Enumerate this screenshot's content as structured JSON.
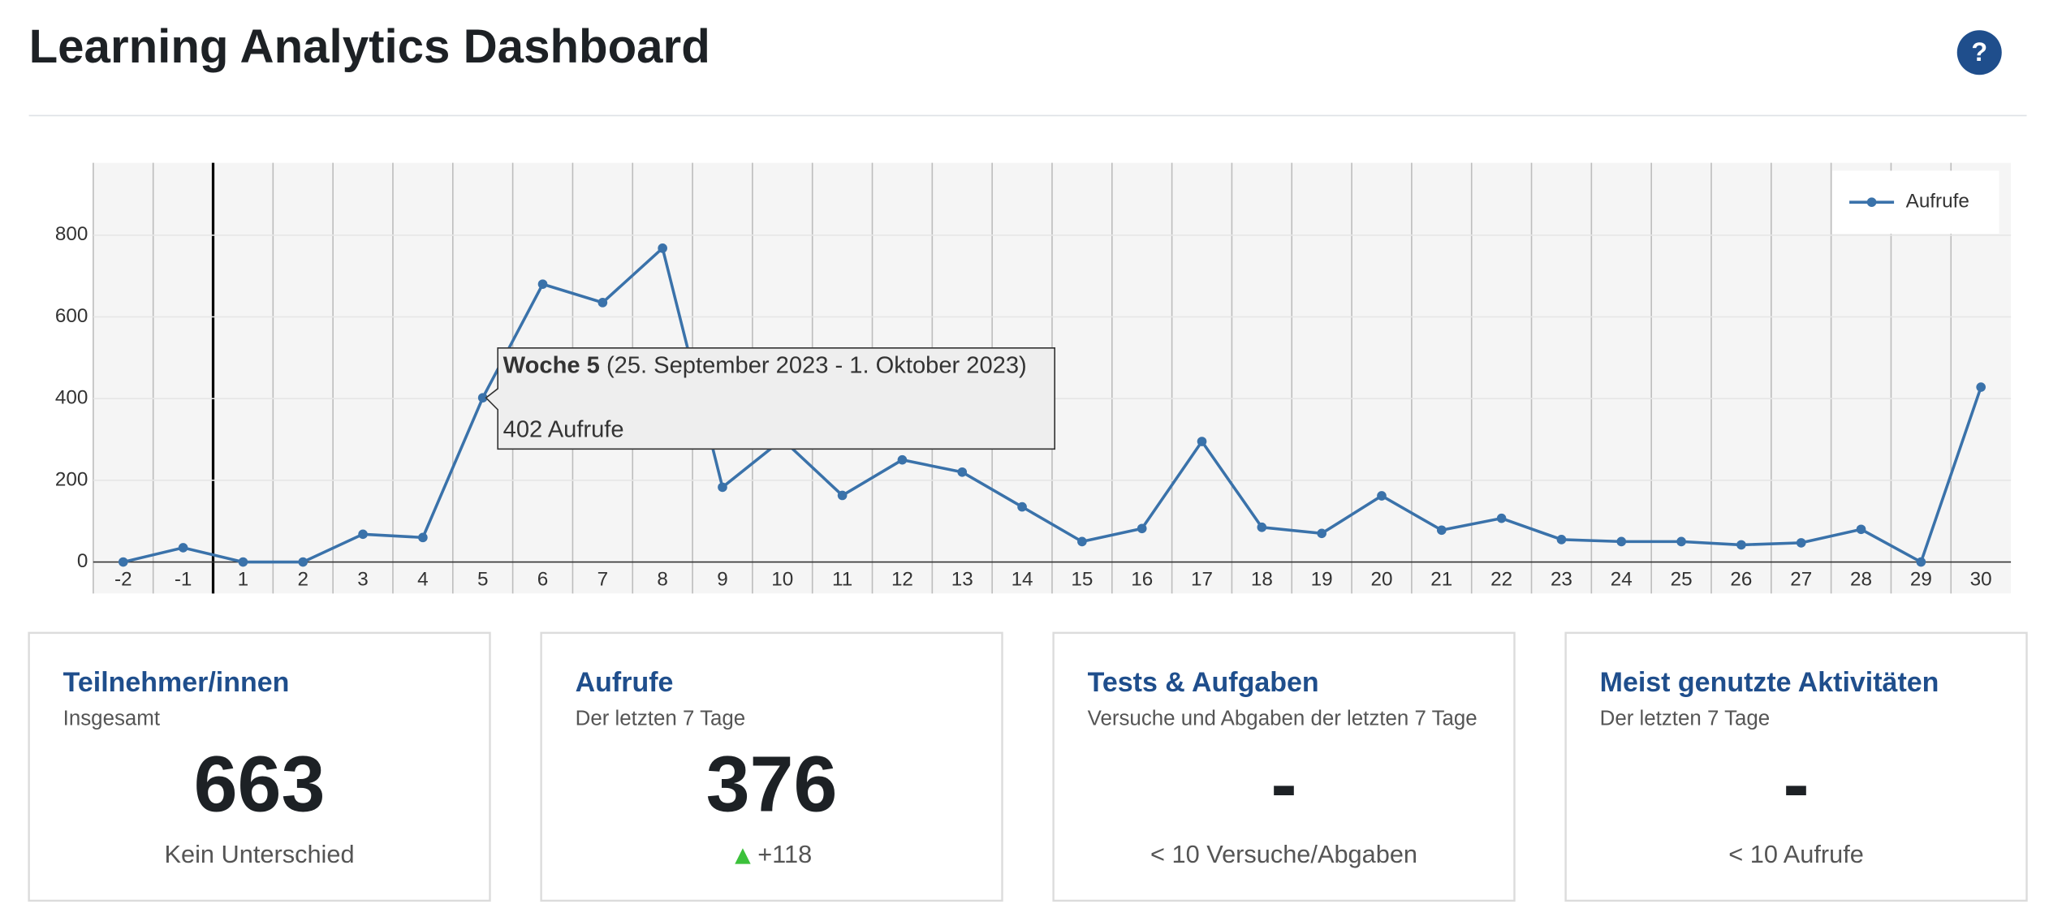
{
  "header": {
    "title": "Learning Analytics Dashboard",
    "help": "?"
  },
  "chart_data": {
    "type": "line",
    "categories": [
      "-2",
      "-1",
      "1",
      "2",
      "3",
      "4",
      "5",
      "6",
      "7",
      "8",
      "9",
      "10",
      "11",
      "12",
      "13",
      "14",
      "15",
      "16",
      "17",
      "18",
      "19",
      "20",
      "21",
      "22",
      "23",
      "24",
      "25",
      "26",
      "27",
      "28",
      "29",
      "30"
    ],
    "series": [
      {
        "name": "Aufrufe",
        "color": "#3a72aa",
        "values": [
          0,
          35,
          0,
          0,
          68,
          60,
          402,
          680,
          635,
          768,
          183,
          300,
          163,
          250,
          220,
          135,
          50,
          82,
          295,
          85,
          70,
          162,
          78,
          107,
          55,
          50,
          50,
          42,
          47,
          80,
          0,
          428
        ]
      }
    ],
    "ylim": [
      -77,
      977
    ],
    "yticks": [
      0,
      200,
      400,
      600,
      800
    ],
    "grid": true,
    "legend": "top-right",
    "tooltip": {
      "title": "Woche 5",
      "range": "(25. September 2023 - 1. Oktober 2023)",
      "value_label": "402 Aufrufe"
    }
  },
  "cards": [
    {
      "title": "Teilnehmer/innen",
      "subtitle": "Insgesamt",
      "value": "663",
      "footer": "Kein Unterschied"
    },
    {
      "title": "Aufrufe",
      "subtitle": "Der letzten 7 Tage",
      "value": "376",
      "footer": "+118"
    },
    {
      "title": "Tests & Aufgaben",
      "subtitle": "Versuche und Abgaben der letzten 7 Tage",
      "value": "-",
      "footer": "< 10 Versuche/Abgaben"
    },
    {
      "title": "Meist genutzte Aktivitäten",
      "subtitle": "Der letzten 7 Tage",
      "value": "-",
      "footer": "< 10 Aufrufe"
    }
  ]
}
